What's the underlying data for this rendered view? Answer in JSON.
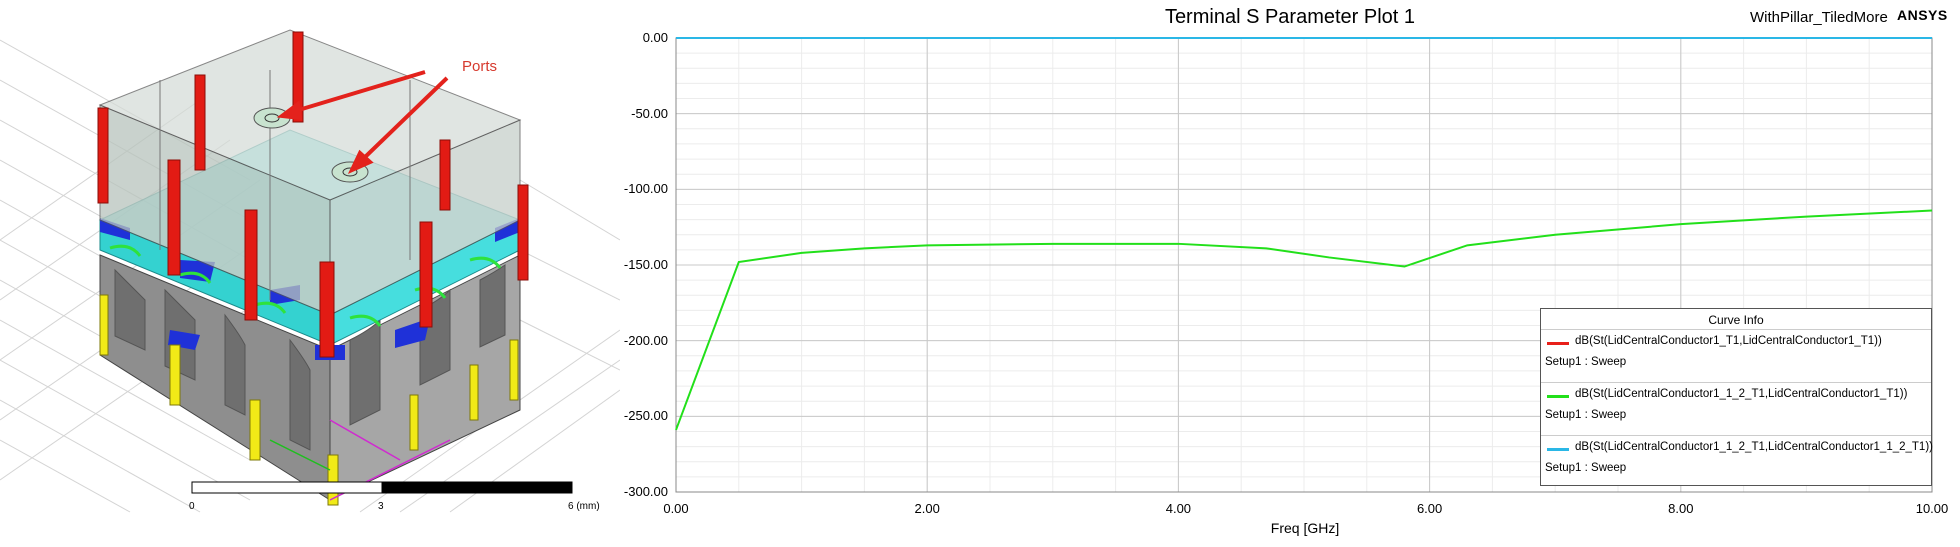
{
  "model_view": {
    "annotation": "Ports",
    "scale": {
      "labels": [
        "0",
        "3",
        "6 (mm)"
      ]
    }
  },
  "plot": {
    "title": "Terminal S Parameter Plot 1",
    "design_name": "WithPillar_TiledMore",
    "brand": "ANSYS",
    "legend_title": "Curve Info"
  },
  "chart_data": {
    "type": "line",
    "title": "Terminal S Parameter Plot 1",
    "xlabel": "Freq [GHz]",
    "ylabel": "",
    "xlim": [
      0,
      10
    ],
    "ylim": [
      -300,
      0
    ],
    "x_ticks": [
      "0.00",
      "2.00",
      "4.00",
      "6.00",
      "8.00",
      "10.00"
    ],
    "y_ticks": [
      "0.00",
      "-50.00",
      "-100.00",
      "-150.00",
      "-200.00",
      "-250.00",
      "-300.00"
    ],
    "grid": true,
    "legend_position": "bottom-right",
    "series": [
      {
        "name": "dB(St(LidCentralConductor1_T1,LidCentralConductor1_T1))",
        "setup": "Setup1 : Sweep",
        "color": "#e8201a",
        "x": [
          0,
          0.5,
          1,
          2,
          3,
          4,
          5,
          10
        ],
        "y": [
          0,
          0,
          0,
          0,
          0,
          0,
          0,
          0
        ]
      },
      {
        "name": "dB(St(LidCentralConductor1_1_2_T1,LidCentralConductor1_T1))",
        "setup": "Setup1 : Sweep",
        "color": "#22e01a",
        "x": [
          0,
          0.5,
          1.0,
          1.5,
          2.0,
          3.0,
          4.0,
          4.7,
          5.2,
          5.8,
          6.3,
          7.0,
          8.0,
          9.0,
          10.0
        ],
        "y": [
          -259,
          -148,
          -142,
          -139,
          -137,
          -136,
          -136,
          -139,
          -145,
          -151,
          -137,
          -130,
          -123,
          -118,
          -114
        ]
      },
      {
        "name": "dB(St(LidCentralConductor1_1_2_T1,LidCentralConductor1_1_2_T1))",
        "setup": "Setup1 : Sweep",
        "color": "#2ab7e6",
        "x": [
          0,
          1,
          2,
          3,
          4,
          5,
          6,
          7,
          8,
          9,
          10
        ],
        "y": [
          0,
          0,
          0,
          0,
          0,
          0,
          0,
          0,
          0,
          0,
          0
        ]
      }
    ]
  }
}
